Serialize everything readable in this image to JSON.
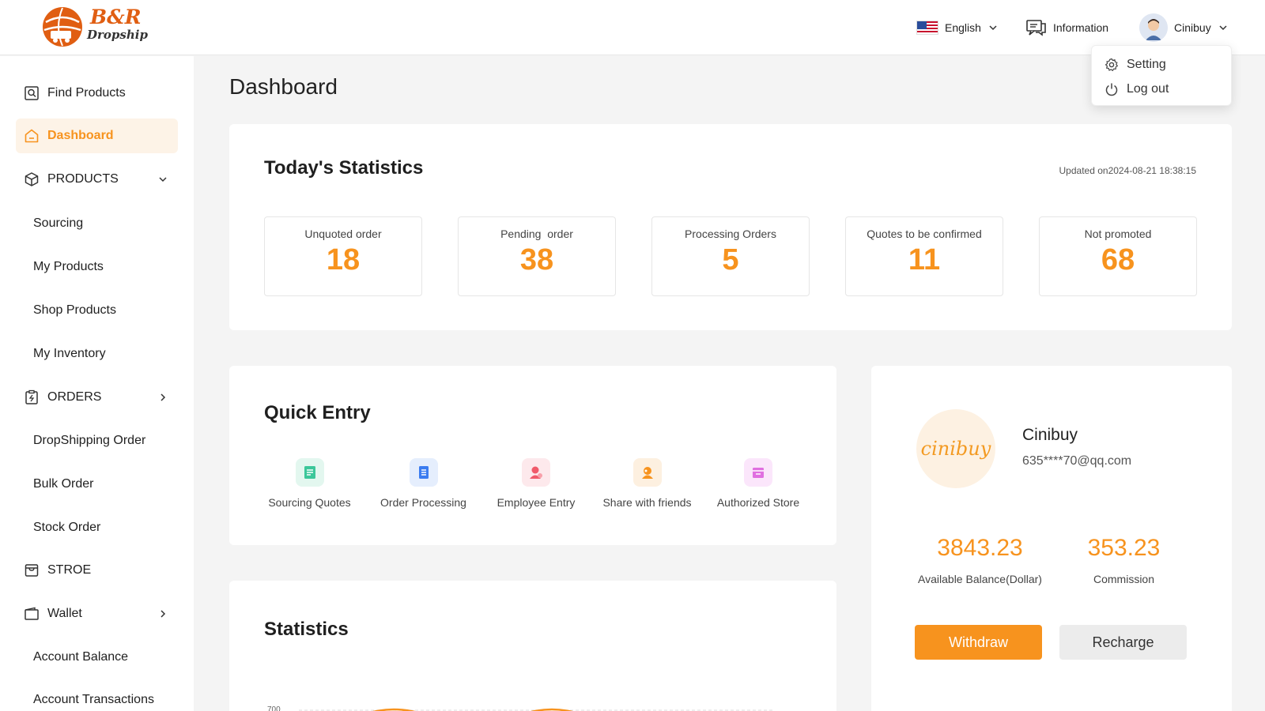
{
  "header": {
    "brand_line1": "B&R",
    "brand_line2": "Dropship",
    "language": "English",
    "information": "Information",
    "user": "Cinibuy"
  },
  "user_menu": {
    "items": [
      {
        "label": "Setting",
        "icon": "gear-icon"
      },
      {
        "label": "Log out",
        "icon": "power-icon"
      }
    ]
  },
  "sidebar": {
    "items": [
      {
        "label": "Find Products",
        "icon": "search-doc-icon"
      },
      {
        "label": "Dashboard",
        "icon": "home-icon",
        "active": true
      },
      {
        "label": "PRODUCTS",
        "icon": "box-icon",
        "expanded": true
      },
      {
        "label": "Sourcing"
      },
      {
        "label": "My Products"
      },
      {
        "label": "Shop Products"
      },
      {
        "label": "My Inventory"
      },
      {
        "label": "ORDERS",
        "icon": "order-icon"
      },
      {
        "label": "DropShipping Order"
      },
      {
        "label": "Bulk Order"
      },
      {
        "label": "Stock Order"
      },
      {
        "label": "STROE",
        "icon": "store-icon"
      },
      {
        "label": "Wallet",
        "icon": "wallet-icon"
      },
      {
        "label": "Account Balance"
      },
      {
        "label": "Account Transactions"
      }
    ]
  },
  "main": {
    "title": "Dashboard",
    "today": {
      "title": "Today's Statistics",
      "updated": "Updated on2024-08-21 18:38:15",
      "stats": [
        {
          "label": "Unquoted order",
          "value": "18"
        },
        {
          "label": "Pending  order",
          "value": "38"
        },
        {
          "label": "Processing Orders",
          "value": "5"
        },
        {
          "label": "Quotes to be confirmed",
          "value": "11"
        },
        {
          "label": "Not promoted",
          "value": "68"
        }
      ]
    },
    "quick_entry": {
      "title": "Quick Entry",
      "items": [
        {
          "label": "Sourcing Quotes",
          "icon": "sourcing-quotes-icon",
          "color": "#3cc79a",
          "bg": "#e3f7ef"
        },
        {
          "label": "Order Processing",
          "icon": "order-processing-icon",
          "color": "#3b7cf0",
          "bg": "#e5eefd"
        },
        {
          "label": "Employee Entry",
          "icon": "employee-icon",
          "color": "#f05a6a",
          "bg": "#fde9ec"
        },
        {
          "label": "Share with friends",
          "icon": "share-icon",
          "color": "#f7931e",
          "bg": "#fdf0e0"
        },
        {
          "label": "Authorized Store",
          "icon": "store-auth-icon",
          "color": "#e06fe0",
          "bg": "#fbe6fb"
        }
      ]
    },
    "statistics": {
      "title": "Statistics",
      "y_tick_top": "700"
    },
    "account": {
      "logo_text": "cinibuy",
      "name": "Cinibuy",
      "email": "635****70@qq.com",
      "balance_value": "3843.23",
      "balance_label": "Available Balance(Dollar)",
      "commission_value": "353.23",
      "commission_label": "Commission",
      "withdraw": "Withdraw",
      "recharge": "Recharge"
    }
  },
  "colors": {
    "accent": "#f7931e",
    "brand": "#e05e12"
  }
}
